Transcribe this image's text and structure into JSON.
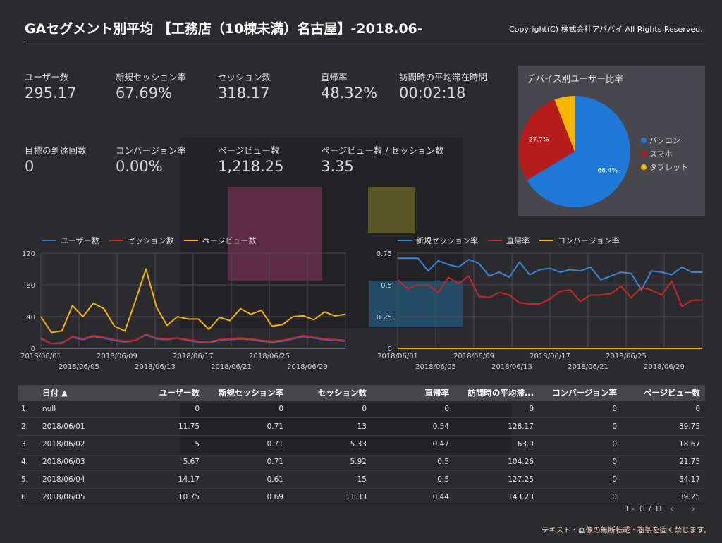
{
  "header": {
    "title": "GAセグメント別平均 【工務店（10棟未満）名古屋】-2018.06-",
    "copyright": "Copyright(C) 株式会社アババイ All Rights Reserved."
  },
  "kpis": [
    {
      "label": "ユーザー数",
      "value": "295.17"
    },
    {
      "label": "新規セッション率",
      "value": "67.69%"
    },
    {
      "label": "セッション数",
      "value": "318.17"
    },
    {
      "label": "直帰率",
      "value": "48.32%"
    },
    {
      "label": "訪問時の平均滞在時間",
      "value": "00:02:18"
    },
    {
      "label": "目標の到達回数",
      "value": "0"
    },
    {
      "label": "コンバージョン率",
      "value": "0.00%"
    },
    {
      "label": "ページビュー数",
      "value": "1,218.25"
    },
    {
      "label": "ページビュー数 / セッション数",
      "value": "3.35"
    }
  ],
  "chart_data": [
    {
      "type": "pie",
      "title": "デバイス別ユーザー比率",
      "slices": [
        {
          "name": "パソコン",
          "value": 66.4,
          "label": "66.4%",
          "color": "#1e78d6"
        },
        {
          "name": "スマホ",
          "value": 27.7,
          "label": "27.7%",
          "color": "#b71c1c"
        },
        {
          "name": "タブレット",
          "value": 5.9,
          "label": "",
          "color": "#f4b400"
        }
      ],
      "legend": "right"
    },
    {
      "type": "line",
      "ylim": [
        0,
        120
      ],
      "yticks": [
        "0",
        "40",
        "80",
        "120"
      ],
      "xticks_top": [
        "2018/06/01",
        "2018/06/09",
        "2018/06/17",
        "2018/06/25"
      ],
      "xticks_bottom": [
        "2018/06/05",
        "2018/06/13",
        "2018/06/21",
        "2018/06/29"
      ],
      "legend": "top-left",
      "grid": true,
      "series": [
        {
          "name": "ユーザー数",
          "color": "#3a6fc4",
          "values": [
            12,
            6,
            7,
            14,
            11,
            15,
            13,
            10,
            8,
            10,
            17,
            12,
            11,
            13,
            10,
            8,
            7,
            10,
            11,
            12,
            11,
            9,
            8,
            9,
            12,
            15,
            13,
            11,
            10,
            9
          ]
        },
        {
          "name": "セッション数",
          "color": "#c62828",
          "values": [
            13,
            6,
            6,
            15,
            12,
            16,
            14,
            11,
            9,
            10,
            18,
            13,
            12,
            13,
            11,
            9,
            8,
            11,
            12,
            13,
            12,
            10,
            9,
            10,
            13,
            16,
            14,
            12,
            11,
            10
          ]
        },
        {
          "name": "ページビュー数",
          "color": "#f4b400",
          "values": [
            40,
            20,
            22,
            54,
            40,
            57,
            50,
            28,
            22,
            60,
            100,
            52,
            29,
            40,
            37,
            37,
            24,
            39,
            35,
            50,
            43,
            48,
            28,
            30,
            40,
            41,
            36,
            46,
            41,
            43
          ]
        }
      ]
    },
    {
      "type": "line",
      "ylim": [
        0,
        0.75
      ],
      "yticks": [
        "0",
        "0.25",
        "0.5",
        "0.75"
      ],
      "xticks_top": [
        "2018/06/01",
        "2018/06/09",
        "2018/06/17",
        "2018/06/25"
      ],
      "xticks_bottom": [
        "2018/06/05",
        "2018/06/13",
        "2018/06/21",
        "2018/06/29"
      ],
      "legend": "top-left",
      "grid": true,
      "series": [
        {
          "name": "新規セッション率",
          "color": "#3a86d6",
          "values": [
            0.71,
            0.71,
            0.71,
            0.61,
            0.69,
            0.66,
            0.64,
            0.7,
            0.67,
            0.57,
            0.6,
            0.56,
            0.68,
            0.58,
            0.62,
            0.63,
            0.6,
            0.62,
            0.61,
            0.64,
            0.54,
            0.57,
            0.6,
            0.59,
            0.46,
            0.61,
            0.6,
            0.58,
            0.64,
            0.6,
            0.6
          ]
        },
        {
          "name": "直帰率",
          "color": "#c62828",
          "values": [
            0.54,
            0.47,
            0.5,
            0.5,
            0.44,
            0.56,
            0.51,
            0.57,
            0.41,
            0.4,
            0.44,
            0.42,
            0.36,
            0.35,
            0.35,
            0.39,
            0.45,
            0.46,
            0.37,
            0.42,
            0.42,
            0.43,
            0.49,
            0.4,
            0.48,
            0.46,
            0.42,
            0.53,
            0.33,
            0.38,
            0.38
          ]
        },
        {
          "name": "コンバージョン率",
          "color": "#f4b400",
          "values": [
            0,
            0,
            0,
            0,
            0,
            0,
            0,
            0,
            0,
            0,
            0,
            0,
            0,
            0,
            0,
            0,
            0,
            0,
            0,
            0,
            0,
            0,
            0,
            0,
            0,
            0,
            0,
            0,
            0,
            0,
            0
          ]
        }
      ]
    }
  ],
  "table": {
    "columns": [
      "日付 ▲",
      "ユーザー数",
      "新規セッション率",
      "セッション数",
      "直帰率",
      "訪問時の平均滞...",
      "コンバージョン率",
      "ページビュー数"
    ],
    "rows": [
      [
        "1.",
        "null",
        "0",
        "0",
        "0",
        "0",
        "0",
        "0",
        "0"
      ],
      [
        "2.",
        "2018/06/01",
        "11.75",
        "0.71",
        "13",
        "0.54",
        "128.17",
        "0",
        "39.75"
      ],
      [
        "3.",
        "2018/06/02",
        "5",
        "0.71",
        "5.33",
        "0.47",
        "63.9",
        "0",
        "18.67"
      ],
      [
        "4.",
        "2018/06/03",
        "5.67",
        "0.71",
        "5.92",
        "0.5",
        "104.26",
        "0",
        "21.75"
      ],
      [
        "5.",
        "2018/06/04",
        "14.17",
        "0.61",
        "15",
        "0.5",
        "127.25",
        "0",
        "54.17"
      ],
      [
        "6.",
        "2018/06/05",
        "10.75",
        "0.69",
        "11.33",
        "0.44",
        "143.23",
        "0",
        "39.25"
      ]
    ],
    "pager": "1 - 31 / 31"
  },
  "footer": "テキスト・画像の無断転載・複製を固く禁じます。",
  "icons": {
    "prev": "chevron-left-icon",
    "next": "chevron-right-icon",
    "sort": "sort-asc-icon"
  }
}
